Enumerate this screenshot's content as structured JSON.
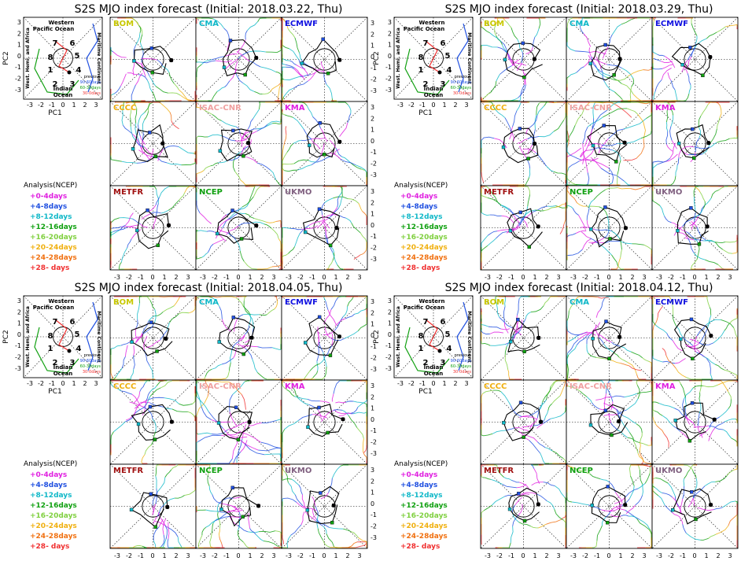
{
  "colors": {
    "axis": "#000000",
    "analysis": "#000000",
    "lead_colors": [
      "#e020e0",
      "#2050e0",
      "#10b8c8",
      "#10a010",
      "#80d040",
      "#f0b010",
      "#f07010",
      "#f03030"
    ]
  },
  "legend": {
    "analysis_title": "Analysis(NCEP)",
    "leads": [
      "+0-4days",
      "+4-8days",
      "+8-12days",
      "+12-16days",
      "+16-20days",
      "+20-24days",
      "+24-28days",
      "+28- days"
    ]
  },
  "phase_space": {
    "xlabel": "PC1",
    "ylabel": "PC2",
    "region_labels": {
      "top": "Western Pacific Ocean",
      "bottom": "Indian Ocean",
      "left": "West. Hemi. and Africa",
      "right": "Maritime Continent"
    },
    "phase_numbers": [
      "1",
      "2",
      "3",
      "4",
      "5",
      "6",
      "7",
      "8"
    ],
    "history_legend": [
      "previous",
      "90-60days",
      "60-30days",
      "30-0days"
    ],
    "history_colors": [
      "#2050e0",
      "#10a010",
      "#f03030"
    ]
  },
  "model_name_colors": {
    "BOM": "#c8c800",
    "CMA": "#10b8c8",
    "ECMWF": "#1010e0",
    "CCCC": "#f0b010",
    "ISAC-CNR": "#f0a0a0",
    "KMA": "#e020e0",
    "METFR": "#a01010",
    "NCEP": "#10a010",
    "UKMO": "#806080"
  },
  "chart_data": [
    {
      "type": "scatter",
      "title": "S2S MJO index forecast (Initial: 2018.03.22, Thu)",
      "models": [
        "BOM",
        "CMA",
        "ECMWF",
        "CCCC",
        "ISAC-CNR",
        "KMA",
        "METFR",
        "NCEP",
        "UKMO"
      ],
      "xlim": [
        -4,
        4
      ],
      "ylim": [
        -4,
        4
      ],
      "x_ticks": [
        "-3",
        "-2",
        "-1",
        "0",
        "1",
        "2",
        "3"
      ],
      "y_ticks": [
        "3",
        "2",
        "1",
        "0",
        "-1",
        "-2",
        "-3"
      ],
      "panel_ticks": [
        "3",
        "2",
        "1",
        "0",
        "-1",
        "-2",
        "-3"
      ],
      "panel_x_ticks": [
        "-3",
        "-2",
        "-1",
        "0",
        "1",
        "2",
        "3"
      ]
    },
    {
      "type": "scatter",
      "title": "S2S MJO index forecast (Initial: 2018.03.29, Thu)",
      "models": [
        "BOM",
        "CMA",
        "ECMWF",
        "CCCC",
        "ISAC-CNR",
        "KMA",
        "METFR",
        "NCEP",
        "UKMO"
      ],
      "xlim": [
        -4,
        4
      ],
      "ylim": [
        -4,
        4
      ],
      "x_ticks": [
        "-3",
        "-2",
        "-1",
        "0",
        "1",
        "2",
        "3"
      ],
      "y_ticks": [
        "3",
        "2",
        "1",
        "0",
        "-1",
        "-2",
        "-3"
      ],
      "panel_ticks": [
        "3",
        "2",
        "1",
        "0",
        "-1",
        "-2",
        "-3"
      ],
      "panel_x_ticks": [
        "-3",
        "-2",
        "-1",
        "0",
        "1",
        "2",
        "3"
      ]
    },
    {
      "type": "scatter",
      "title": "S2S MJO index forecast (Initial: 2018.04.05, Thu)",
      "models": [
        "BOM",
        "CMA",
        "ECMWF",
        "CCCC",
        "ISAC-CNR",
        "KMA",
        "METFR",
        "NCEP",
        "UKMO"
      ],
      "xlim": [
        -4,
        4
      ],
      "ylim": [
        -4,
        4
      ],
      "x_ticks": [
        "-3",
        "-2",
        "-1",
        "0",
        "1",
        "2",
        "3"
      ],
      "y_ticks": [
        "3",
        "2",
        "1",
        "0",
        "-1",
        "-2",
        "-3"
      ],
      "panel_ticks": [
        "3",
        "2",
        "1",
        "0",
        "-1",
        "-2",
        "-3"
      ],
      "panel_x_ticks": [
        "-3",
        "-2",
        "-1",
        "0",
        "1",
        "2",
        "3"
      ]
    },
    {
      "type": "scatter",
      "title": "S2S MJO index forecast (Initial: 2018.04.12, Thu)",
      "models": [
        "BOM",
        "CMA",
        "ECMWF",
        "CCCC",
        "ISAC-CNR",
        "KMA",
        "METFR",
        "NCEP",
        "UKMO"
      ],
      "xlim": [
        -4,
        4
      ],
      "ylim": [
        -4,
        4
      ],
      "x_ticks": [
        "-3",
        "-2",
        "-1",
        "0",
        "1",
        "2",
        "3"
      ],
      "y_ticks": [
        "3",
        "2",
        "1",
        "0",
        "-1",
        "-2",
        "-3"
      ],
      "panel_ticks": [
        "3",
        "2",
        "1",
        "0",
        "-1",
        "-2",
        "-3"
      ],
      "panel_x_ticks": [
        "-3",
        "-2",
        "-1",
        "0",
        "1",
        "2",
        "3"
      ]
    }
  ]
}
